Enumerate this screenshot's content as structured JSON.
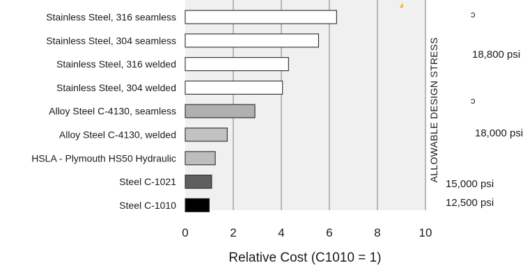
{
  "chart_data": {
    "type": "bar",
    "orientation": "horizontal",
    "categories": [
      "Stainless Steel, 316 seamless",
      "Stainless Steel, 304 seamless",
      "Stainless Steel, 316 welded",
      "Stainless Steel, 304 welded",
      "Alloy Steel C-4130, seamless",
      "Alloy Steel C-4130, welded",
      "HSLA - Plymouth HS50 Hydraulic",
      "Steel C-1021",
      "Steel C-1010"
    ],
    "values": [
      6.3,
      5.55,
      4.3,
      4.05,
      2.9,
      1.75,
      1.25,
      1.1,
      1.0
    ],
    "bar_colors": [
      "#ffffff",
      "#ffffff",
      "#ffffff",
      "#ffffff",
      "#b0b0b0",
      "#c2c2c2",
      "#bdbdbd",
      "#5f5f5f",
      "#000000"
    ],
    "xlabel": "Relative Cost (C1010 = 1)",
    "xlim": [
      0,
      10
    ],
    "xticks": [
      "0",
      "2",
      "4",
      "6",
      "8",
      "10"
    ],
    "grid": "vertical",
    "plot_background": "#f0f0f0",
    "side_title": "ALLOWABLE DESIGN  STRESS",
    "stress_labels": [
      "18,800 psi",
      "18,000 psi",
      "15,000 psi",
      "12,500 psi"
    ],
    "bracket_marks": [
      "ɔ",
      "ɔ"
    ],
    "accent_color": "#f2b233"
  }
}
